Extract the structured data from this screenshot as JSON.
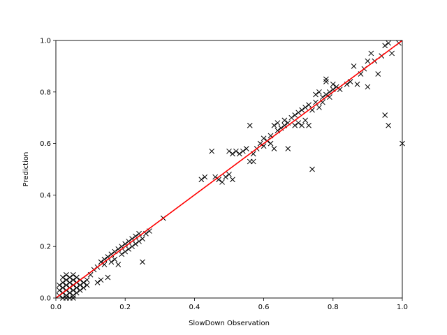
{
  "chart_data": {
    "type": "scatter",
    "xlabel": "SlowDown Observation",
    "ylabel": "Prediction",
    "xlim": [
      0.0,
      1.0
    ],
    "ylim": [
      0.0,
      1.0
    ],
    "xticks": [
      "0.0",
      "0.2",
      "0.4",
      "0.6",
      "0.8",
      "1.0"
    ],
    "yticks": [
      "0.0",
      "0.2",
      "0.4",
      "0.6",
      "0.8",
      "1.0"
    ],
    "grid": false,
    "marker_color": "#000000",
    "fit_line_color": "#ff0000",
    "fit_line": [
      [
        0.0,
        0.0
      ],
      [
        1.0,
        1.0
      ]
    ],
    "series": [
      {
        "marker": "x",
        "points": [
          [
            0.01,
            0.01
          ],
          [
            0.01,
            0.03
          ],
          [
            0.01,
            0.05
          ],
          [
            0.02,
            0.02
          ],
          [
            0.02,
            0.04
          ],
          [
            0.02,
            0.0
          ],
          [
            0.02,
            0.06
          ],
          [
            0.03,
            0.01
          ],
          [
            0.03,
            0.03
          ],
          [
            0.03,
            0.05
          ],
          [
            0.03,
            0.07
          ],
          [
            0.04,
            0.02
          ],
          [
            0.04,
            0.04
          ],
          [
            0.04,
            0.06
          ],
          [
            0.04,
            0.08
          ],
          [
            0.05,
            0.01
          ],
          [
            0.05,
            0.03
          ],
          [
            0.05,
            0.05
          ],
          [
            0.05,
            0.07
          ],
          [
            0.06,
            0.02
          ],
          [
            0.06,
            0.04
          ],
          [
            0.06,
            0.06
          ],
          [
            0.06,
            0.08
          ],
          [
            0.07,
            0.03
          ],
          [
            0.07,
            0.05
          ],
          [
            0.07,
            0.07
          ],
          [
            0.08,
            0.04
          ],
          [
            0.08,
            0.06
          ],
          [
            0.09,
            0.05
          ],
          [
            0.09,
            0.07
          ],
          [
            0.03,
            0.0
          ],
          [
            0.04,
            0.0
          ],
          [
            0.05,
            0.0
          ],
          [
            0.02,
            0.08
          ],
          [
            0.03,
            0.09
          ],
          [
            0.05,
            0.09
          ],
          [
            0.1,
            0.09
          ],
          [
            0.11,
            0.11
          ],
          [
            0.12,
            0.12
          ],
          [
            0.12,
            0.06
          ],
          [
            0.13,
            0.14
          ],
          [
            0.13,
            0.07
          ],
          [
            0.14,
            0.15
          ],
          [
            0.14,
            0.13
          ],
          [
            0.15,
            0.08
          ],
          [
            0.15,
            0.16
          ],
          [
            0.16,
            0.17
          ],
          [
            0.16,
            0.14
          ],
          [
            0.17,
            0.18
          ],
          [
            0.17,
            0.15
          ],
          [
            0.18,
            0.19
          ],
          [
            0.18,
            0.13
          ],
          [
            0.19,
            0.2
          ],
          [
            0.19,
            0.17
          ],
          [
            0.2,
            0.21
          ],
          [
            0.2,
            0.18
          ],
          [
            0.21,
            0.22
          ],
          [
            0.21,
            0.19
          ],
          [
            0.22,
            0.2
          ],
          [
            0.22,
            0.23
          ],
          [
            0.23,
            0.21
          ],
          [
            0.23,
            0.24
          ],
          [
            0.24,
            0.22
          ],
          [
            0.24,
            0.25
          ],
          [
            0.25,
            0.23
          ],
          [
            0.25,
            0.14
          ],
          [
            0.26,
            0.25
          ],
          [
            0.27,
            0.26
          ],
          [
            0.31,
            0.31
          ],
          [
            0.42,
            0.46
          ],
          [
            0.43,
            0.47
          ],
          [
            0.45,
            0.57
          ],
          [
            0.46,
            0.47
          ],
          [
            0.47,
            0.46
          ],
          [
            0.48,
            0.45
          ],
          [
            0.49,
            0.47
          ],
          [
            0.5,
            0.48
          ],
          [
            0.5,
            0.57
          ],
          [
            0.51,
            0.56
          ],
          [
            0.51,
            0.46
          ],
          [
            0.52,
            0.57
          ],
          [
            0.53,
            0.56
          ],
          [
            0.54,
            0.57
          ],
          [
            0.55,
            0.58
          ],
          [
            0.56,
            0.67
          ],
          [
            0.56,
            0.53
          ],
          [
            0.57,
            0.53
          ],
          [
            0.57,
            0.56
          ],
          [
            0.58,
            0.58
          ],
          [
            0.59,
            0.6
          ],
          [
            0.6,
            0.62
          ],
          [
            0.6,
            0.59
          ],
          [
            0.61,
            0.61
          ],
          [
            0.62,
            0.63
          ],
          [
            0.62,
            0.6
          ],
          [
            0.63,
            0.58
          ],
          [
            0.63,
            0.67
          ],
          [
            0.64,
            0.65
          ],
          [
            0.64,
            0.68
          ],
          [
            0.65,
            0.66
          ],
          [
            0.66,
            0.67
          ],
          [
            0.66,
            0.69
          ],
          [
            0.67,
            0.58
          ],
          [
            0.67,
            0.68
          ],
          [
            0.68,
            0.7
          ],
          [
            0.69,
            0.71
          ],
          [
            0.69,
            0.67
          ],
          [
            0.7,
            0.72
          ],
          [
            0.7,
            0.68
          ],
          [
            0.71,
            0.73
          ],
          [
            0.71,
            0.67
          ],
          [
            0.72,
            0.74
          ],
          [
            0.72,
            0.69
          ],
          [
            0.73,
            0.75
          ],
          [
            0.73,
            0.67
          ],
          [
            0.74,
            0.5
          ],
          [
            0.74,
            0.73
          ],
          [
            0.75,
            0.76
          ],
          [
            0.75,
            0.79
          ],
          [
            0.76,
            0.8
          ],
          [
            0.76,
            0.74
          ],
          [
            0.77,
            0.78
          ],
          [
            0.77,
            0.76
          ],
          [
            0.78,
            0.79
          ],
          [
            0.78,
            0.84
          ],
          [
            0.78,
            0.85
          ],
          [
            0.79,
            0.8
          ],
          [
            0.79,
            0.78
          ],
          [
            0.8,
            0.81
          ],
          [
            0.8,
            0.83
          ],
          [
            0.81,
            0.82
          ],
          [
            0.82,
            0.81
          ],
          [
            0.84,
            0.83
          ],
          [
            0.85,
            0.84
          ],
          [
            0.86,
            0.9
          ],
          [
            0.87,
            0.83
          ],
          [
            0.88,
            0.87
          ],
          [
            0.89,
            0.89
          ],
          [
            0.9,
            0.92
          ],
          [
            0.9,
            0.82
          ],
          [
            0.91,
            0.95
          ],
          [
            0.92,
            0.92
          ],
          [
            0.93,
            0.87
          ],
          [
            0.94,
            0.94
          ],
          [
            0.95,
            0.98
          ],
          [
            0.96,
            0.99
          ],
          [
            0.97,
            0.95
          ],
          [
            0.95,
            0.71
          ],
          [
            0.96,
            0.67
          ],
          [
            0.99,
            0.99
          ],
          [
            1.0,
            0.6
          ]
        ]
      }
    ]
  }
}
